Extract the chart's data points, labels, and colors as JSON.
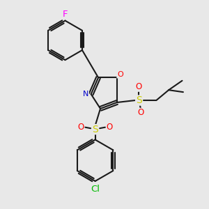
{
  "background_color": "#e8e8e8",
  "bond_color": "#1a1a1a",
  "N_color": "#0000cc",
  "O_color": "#ff0000",
  "S_color": "#cccc00",
  "F_color": "#ff00ff",
  "Cl_color": "#00bb00",
  "figsize": [
    3.0,
    3.0
  ],
  "dpi": 100,
  "xlim": [
    0,
    10
  ],
  "ylim": [
    0,
    10
  ]
}
